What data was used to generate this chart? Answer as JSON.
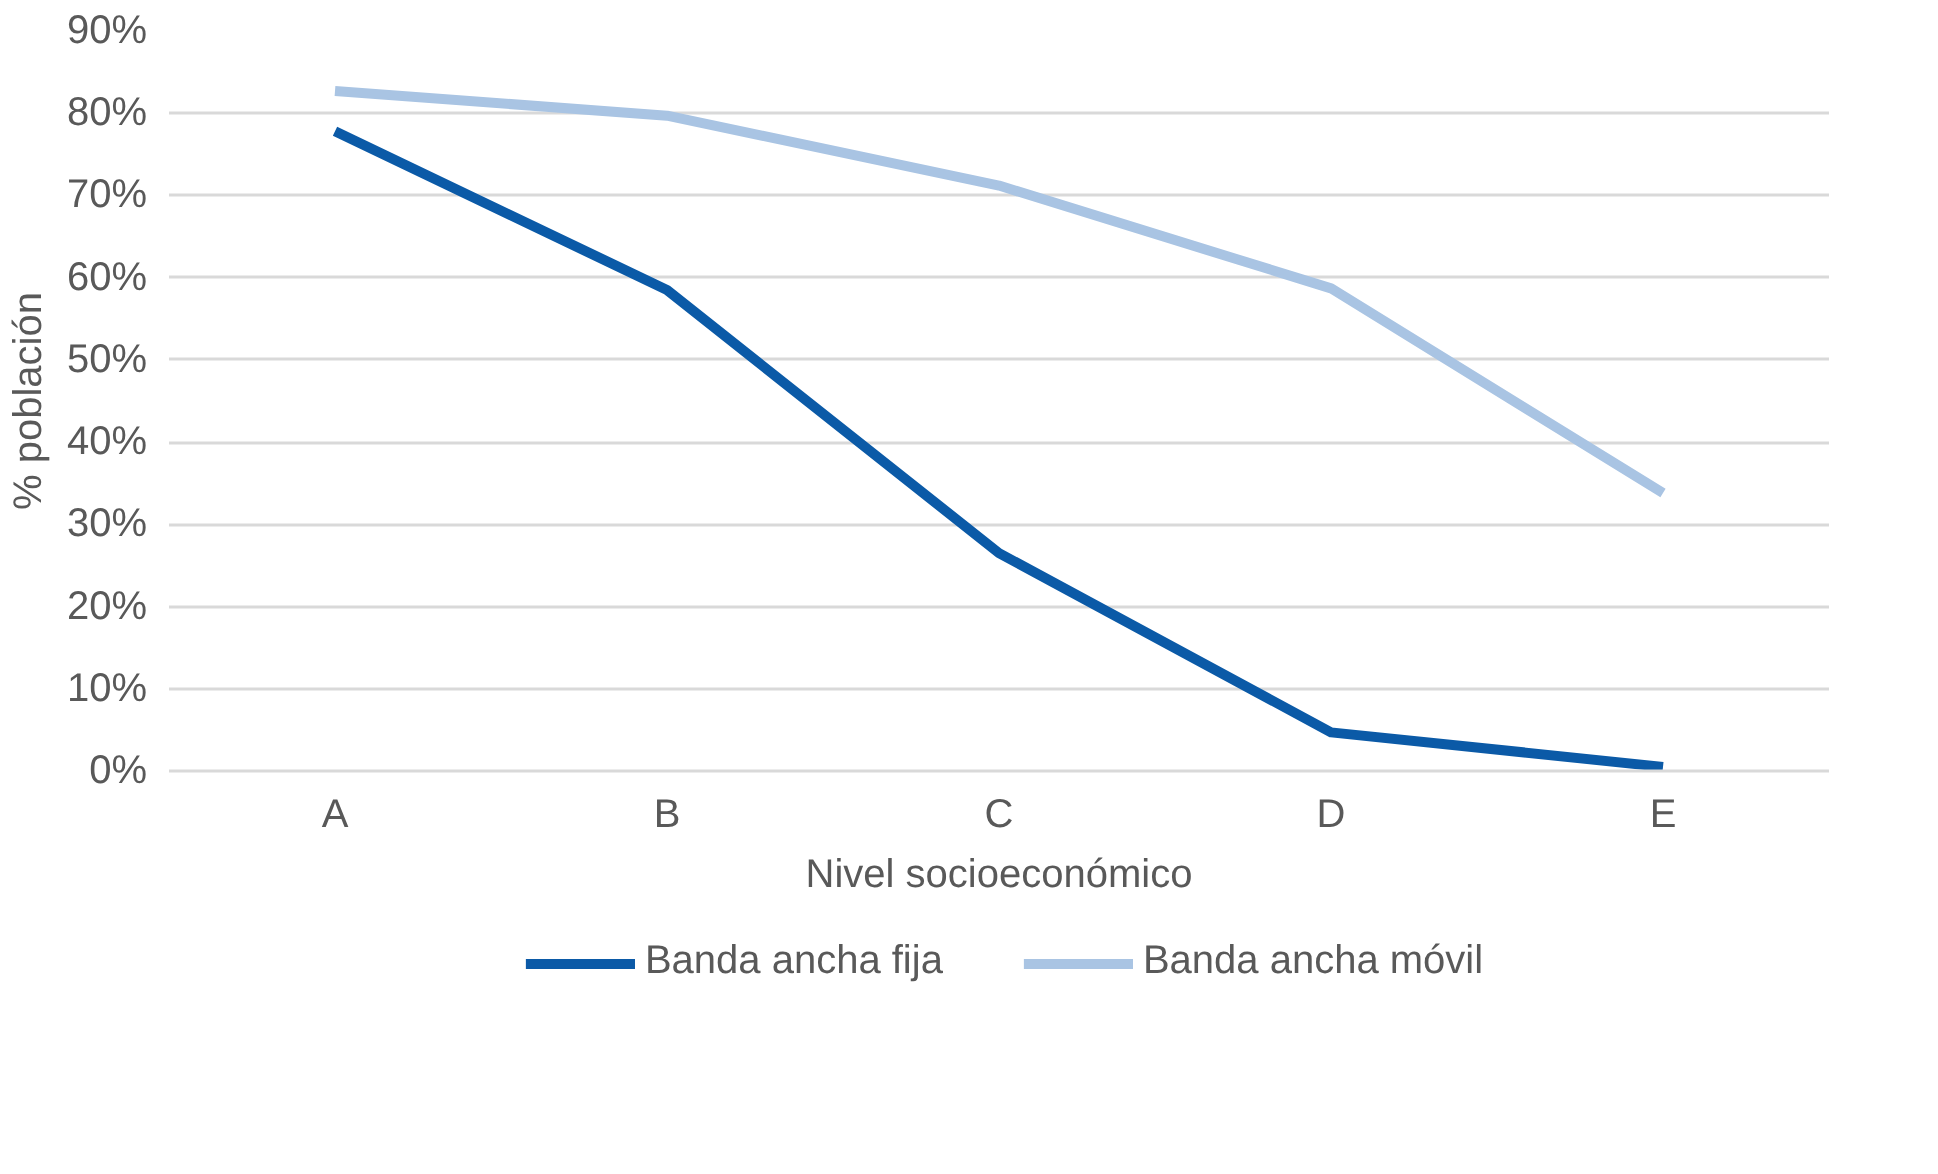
{
  "chart_data": {
    "type": "line",
    "xlabel": "Nivel socioeconómico",
    "ylabel": "% población",
    "categories": [
      "A",
      "B",
      "C",
      "D",
      "E"
    ],
    "series": [
      {
        "name": "Banda ancha fija",
        "color": "#0b5aa7",
        "values": [
          77.8,
          58.5,
          26.5,
          4.7,
          0.5
        ]
      },
      {
        "name": "Banda ancha móvil",
        "color": "#a9c4e3",
        "values": [
          82.7,
          79.7,
          71.2,
          58.7,
          33.8
        ]
      }
    ],
    "ylim": [
      0,
      90
    ],
    "yticks": [
      {
        "value": 0,
        "label": "0%"
      },
      {
        "value": 10,
        "label": "10%"
      },
      {
        "value": 20,
        "label": "20%"
      },
      {
        "value": 30,
        "label": "30%"
      },
      {
        "value": 40,
        "label": "40%"
      },
      {
        "value": 50,
        "label": "50%"
      },
      {
        "value": 60,
        "label": "60%"
      },
      {
        "value": 70,
        "label": "70%"
      },
      {
        "value": 80,
        "label": "80%"
      },
      {
        "value": 90,
        "label": "90%"
      }
    ],
    "grid": "y",
    "legend": "bottom",
    "marker": "none",
    "line_style": "solid"
  }
}
